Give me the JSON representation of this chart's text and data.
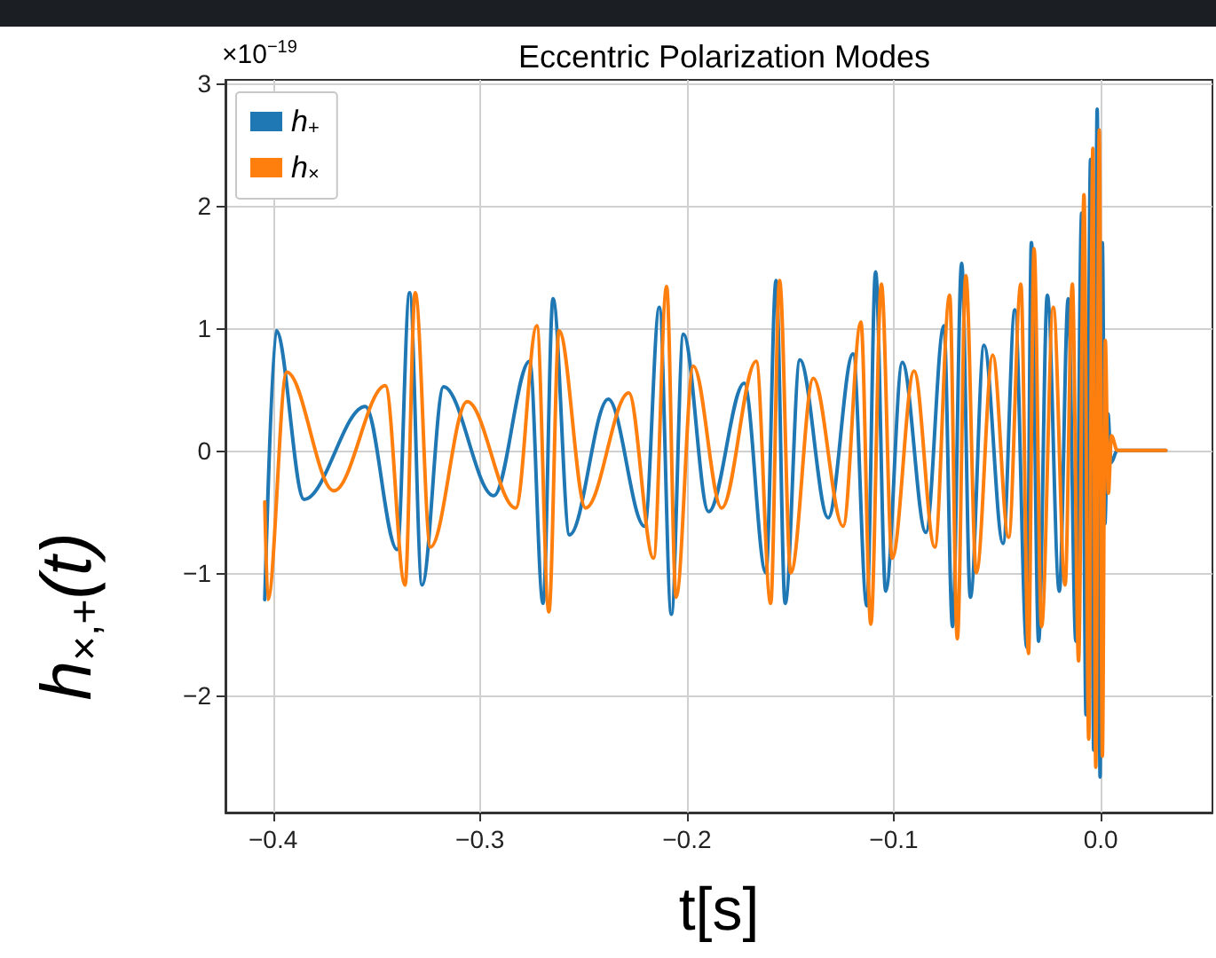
{
  "chart_data": {
    "type": "line",
    "title": "Eccentric Polarization Modes",
    "xlabel": "t[s]",
    "ylabel": "h$_{×,+}$(t)",
    "annotations": [
      "×10$^{−19}$"
    ],
    "xlim": [
      -0.423,
      0.054
    ],
    "ylim": [
      -2.96,
      3.03
    ],
    "xticks": [
      {
        "value": -0.4,
        "label": "−0.4"
      },
      {
        "value": -0.3,
        "label": "−0.3"
      },
      {
        "value": -0.2,
        "label": "−0.2"
      },
      {
        "value": -0.1,
        "label": "−0.1"
      },
      {
        "value": 0,
        "label": "0.0"
      }
    ],
    "yticks": [
      {
        "value": -2,
        "label": "−2"
      },
      {
        "value": -1,
        "label": "−1"
      },
      0,
      1,
      2,
      3
    ],
    "grid": true,
    "legend": "top left",
    "marker": "none",
    "line_style": "solid",
    "series": [
      {
        "name": "h$_{+}$",
        "color": "#1f77b4",
        "x": [
          -0.404,
          -0.3985,
          -0.385,
          -0.3554,
          -0.34,
          -0.334,
          -0.328,
          -0.3176,
          -0.2933,
          -0.276,
          -0.2695,
          -0.2647,
          -0.2567,
          -0.238,
          -0.2204,
          -0.2133,
          -0.2075,
          -0.2017,
          -0.1895,
          -0.1723,
          -0.1618,
          -0.1569,
          -0.1525,
          -0.1454,
          -0.1317,
          -0.1197,
          -0.113,
          -0.1088,
          -0.1039,
          -0.0959,
          -0.0845,
          -0.0758,
          -0.0716,
          -0.0672,
          -0.063,
          -0.0564,
          -0.0472,
          -0.0415,
          -0.0357,
          -0.0335,
          -0.03,
          -0.0258,
          -0.02,
          -0.0157,
          -0.012,
          -0.0092,
          -0.0071,
          -0.0049,
          -0.0034,
          -0.0017,
          -0.0003,
          0.0008,
          0.002,
          0.0035,
          0.005,
          0.008,
          0.0315
        ],
        "values": [
          -1.22,
          0.98,
          -0.4,
          0.36,
          -0.81,
          1.29,
          -1.1,
          0.52,
          -0.37,
          0.73,
          -1.25,
          1.24,
          -0.69,
          0.42,
          -0.62,
          1.17,
          -1.34,
          0.95,
          -0.5,
          0.55,
          -1.0,
          1.39,
          -1.25,
          0.74,
          -0.55,
          0.79,
          -1.27,
          1.46,
          -1.15,
          0.72,
          -0.67,
          1.02,
          -1.44,
          1.53,
          -1.2,
          0.86,
          -0.76,
          1.15,
          -1.61,
          1.7,
          -1.56,
          1.27,
          -1.15,
          1.24,
          -1.56,
          1.94,
          -2.16,
          2.38,
          -2.45,
          2.79,
          -2.67,
          1.7,
          -0.6,
          0.3,
          -0.1,
          0,
          0
        ]
      },
      {
        "name": "h$_{×}$",
        "color": "#ff7f0e",
        "x": [
          -0.404,
          -0.4025,
          -0.3934,
          -0.3706,
          -0.3457,
          -0.3362,
          -0.3313,
          -0.3239,
          -0.3062,
          -0.2827,
          -0.2725,
          -0.2667,
          -0.2618,
          -0.2489,
          -0.2281,
          -0.2161,
          -0.2098,
          -0.2052,
          -0.1969,
          -0.1832,
          -0.1665,
          -0.1595,
          -0.1552,
          -0.1498,
          -0.1389,
          -0.1245,
          -0.1159,
          -0.1111,
          -0.106,
          -0.1008,
          -0.0902,
          -0.0802,
          -0.073,
          -0.0693,
          -0.0652,
          -0.0601,
          -0.0522,
          -0.0445,
          -0.0386,
          -0.0349,
          -0.0322,
          -0.0286,
          -0.0229,
          -0.0172,
          -0.0137,
          -0.0107,
          -0.0081,
          -0.0058,
          -0.0038,
          -0.0024,
          -0.0007,
          0.0008,
          0.0022,
          0.0037,
          0.0052,
          0.008,
          0.0315
        ],
        "values": [
          -0.42,
          -1.22,
          0.64,
          -0.33,
          0.53,
          -1.1,
          1.29,
          -0.79,
          0.4,
          -0.47,
          1.02,
          -1.32,
          0.98,
          -0.47,
          0.47,
          -0.88,
          1.34,
          -1.2,
          0.69,
          -0.47,
          0.73,
          -1.25,
          1.39,
          -1.0,
          0.59,
          -0.62,
          1.05,
          -1.42,
          1.36,
          -0.88,
          0.65,
          -0.79,
          1.27,
          -1.54,
          1.43,
          -1.0,
          0.78,
          -0.71,
          1.36,
          -1.66,
          1.65,
          -1.44,
          1.17,
          -1.1,
          1.36,
          -1.72,
          2.09,
          -2.36,
          2.47,
          -2.59,
          2.62,
          -2.5,
          0.9,
          -0.35,
          0.12,
          0,
          0
        ]
      }
    ]
  }
}
